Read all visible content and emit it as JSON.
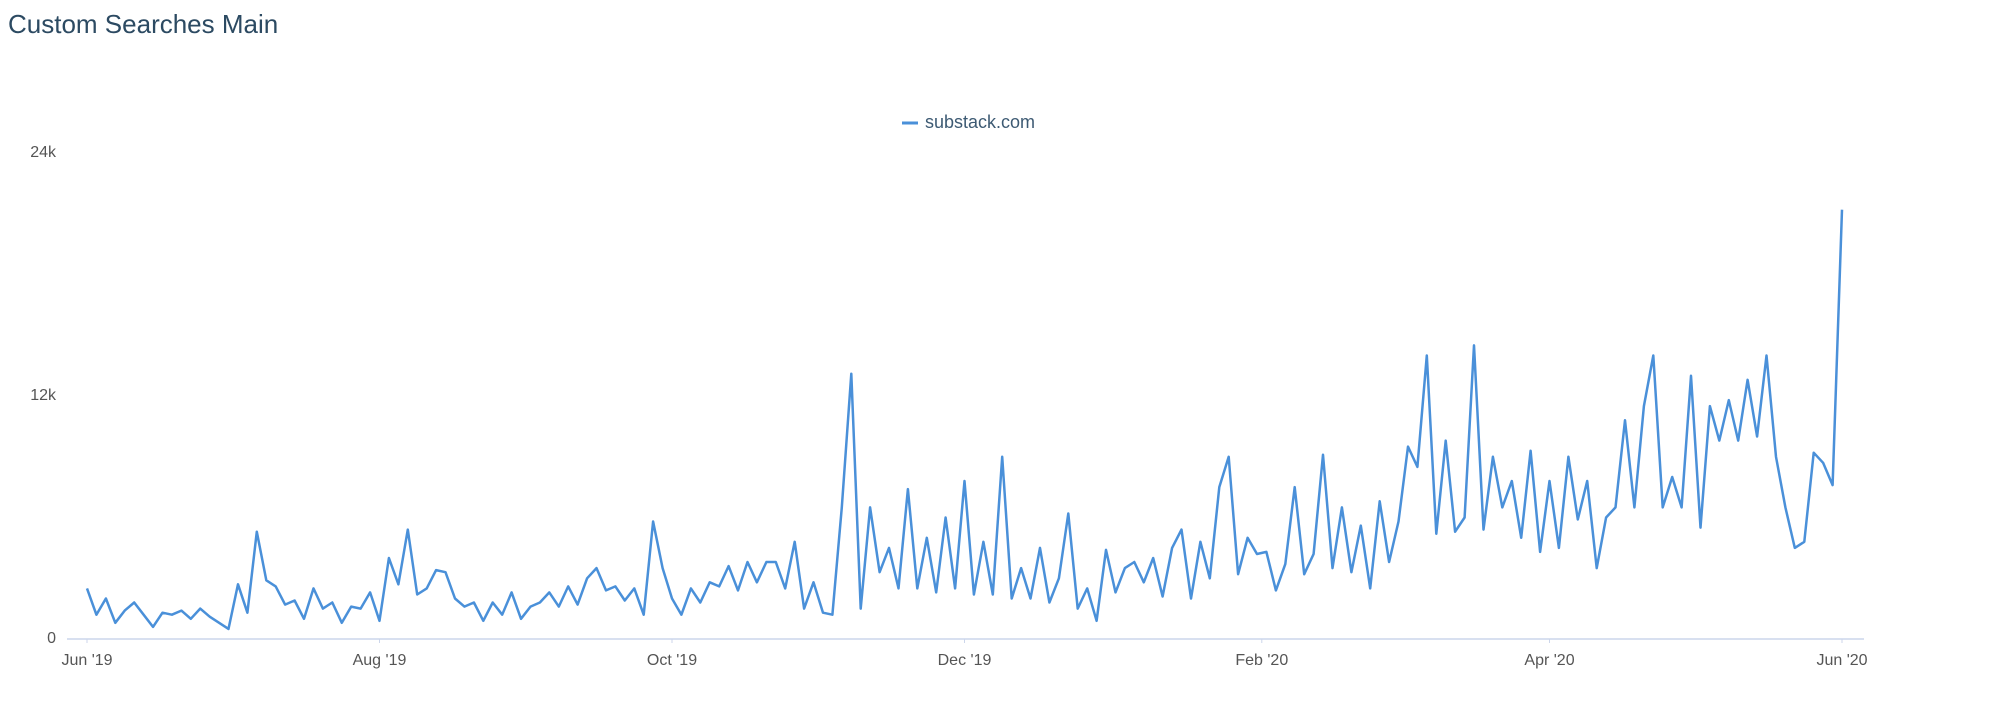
{
  "chart_data": {
    "type": "line",
    "title": "Custom Searches Main",
    "xlim": [
      0,
      366
    ],
    "xticks": [
      {
        "value": 0,
        "label": "Jun '19"
      },
      {
        "value": 61,
        "label": "Aug '19"
      },
      {
        "value": 122,
        "label": "Oct '19"
      },
      {
        "value": 183,
        "label": "Dec '19"
      },
      {
        "value": 245,
        "label": "Feb '20"
      },
      {
        "value": 305,
        "label": "Apr '20"
      },
      {
        "value": 366,
        "label": "Jun '20"
      }
    ],
    "ylim": [
      0,
      24000
    ],
    "yticks": [
      0,
      {
        "value": 12000,
        "label": "12k"
      },
      {
        "value": 24000,
        "label": "24k"
      }
    ],
    "grid": false,
    "legend": "top",
    "series": [
      {
        "name": "substack.com",
        "color": "#4a90d9",
        "values": [
          2500,
          1200,
          2000,
          800,
          1400,
          1800,
          1200,
          600,
          1300,
          1200,
          1400,
          1000,
          1500,
          1100,
          800,
          500,
          2700,
          1300,
          5300,
          2900,
          2600,
          1700,
          1900,
          1000,
          2500,
          1500,
          1800,
          800,
          1600,
          1500,
          2300,
          900,
          4000,
          2700,
          5400,
          2200,
          2500,
          3400,
          3300,
          2000,
          1600,
          1800,
          900,
          1800,
          1200,
          2300,
          1000,
          1600,
          1800,
          2300,
          1600,
          2600,
          1700,
          3000,
          3500,
          2400,
          2600,
          1900,
          2500,
          1200,
          5800,
          3500,
          2000,
          1200,
          2500,
          1800,
          2800,
          2600,
          3600,
          2400,
          3800,
          2800,
          3800,
          3800,
          2500,
          4800,
          1500,
          2800,
          1300,
          1200,
          6500,
          13100,
          1500,
          6500,
          3300,
          4500,
          2500,
          7400,
          2500,
          5000,
          2300,
          6000,
          2500,
          7800,
          2200,
          4800,
          2200,
          9000,
          2000,
          3500,
          2000,
          4500,
          1800,
          3000,
          6200,
          1500,
          2500,
          900,
          4400,
          2300,
          3500,
          3800,
          2800,
          4000,
          2100,
          4500,
          5400,
          2000,
          4800,
          3000,
          7500,
          9000,
          3200,
          5000,
          4200,
          4300,
          2400,
          3700,
          7500,
          3200,
          4200,
          9100,
          3500,
          6500,
          3300,
          5600,
          2500,
          6800,
          3800,
          5800,
          9500,
          8500,
          14000,
          5200,
          9800,
          5300,
          6000,
          14500,
          5400,
          9000,
          6500,
          7800,
          5000,
          9300,
          4300,
          7800,
          4500,
          9000,
          5900,
          7800,
          3500,
          6000,
          6500,
          10800,
          6500,
          11500,
          14000,
          6500,
          8000,
          6500,
          13000,
          5500,
          11500,
          9800,
          11800,
          9800,
          12800,
          10000,
          14000,
          9000,
          6500,
          4500,
          4800,
          9200,
          8700,
          7600,
          21200
        ]
      }
    ]
  }
}
